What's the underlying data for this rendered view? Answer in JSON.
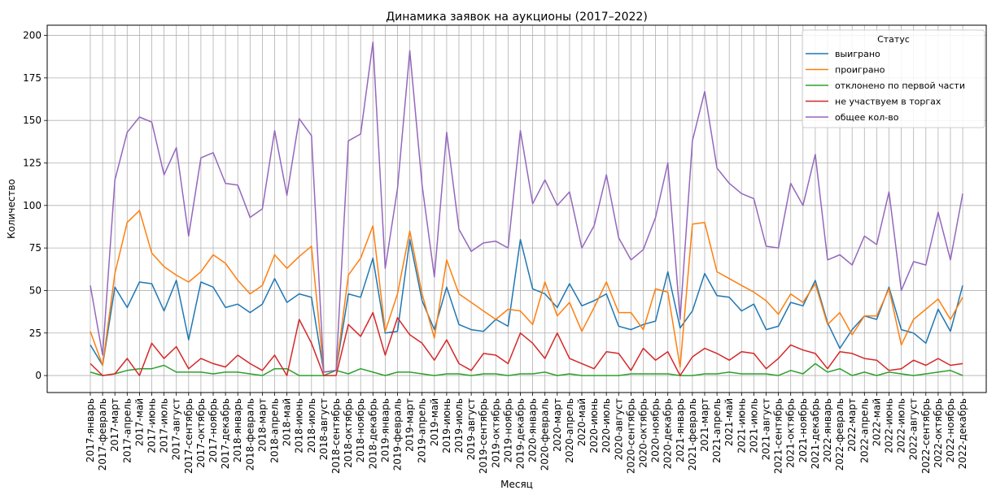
{
  "chart_data": {
    "type": "line",
    "title": "Динамика заявок на аукционы (2017–2022)",
    "xlabel": "Месяц",
    "ylabel": "Количество",
    "ylim": [
      -10,
      206
    ],
    "yticks": [
      0,
      25,
      50,
      75,
      100,
      125,
      150,
      175,
      200
    ],
    "grid": true,
    "legend": {
      "title": "Статус",
      "placement": "top-right"
    },
    "categories": [
      "2017-январь",
      "2017-февраль",
      "2017-март",
      "2017-апрель",
      "2017-май",
      "2017-июнь",
      "2017-июль",
      "2017-август",
      "2017-сентябрь",
      "2017-октябрь",
      "2017-ноябрь",
      "2017-декабрь",
      "2018-январь",
      "2018-февраль",
      "2018-март",
      "2018-апрель",
      "2018-май",
      "2018-июнь",
      "2018-июль",
      "2018-август",
      "2018-сентябрь",
      "2018-октябрь",
      "2018-ноябрь",
      "2018-декабрь",
      "2019-январь",
      "2019-февраль",
      "2019-март",
      "2019-апрель",
      "2019-май",
      "2019-июнь",
      "2019-июль",
      "2019-август",
      "2019-сентябрь",
      "2019-октябрь",
      "2019-ноябрь",
      "2019-декабрь",
      "2020-январь",
      "2020-февраль",
      "2020-март",
      "2020-апрель",
      "2020-май",
      "2020-июнь",
      "2020-июль",
      "2020-август",
      "2020-сентябрь",
      "2020-октябрь",
      "2020-ноябрь",
      "2020-декабрь",
      "2021-январь",
      "2021-февраль",
      "2021-март",
      "2021-апрель",
      "2021-май",
      "2021-июнь",
      "2021-июль",
      "2021-август",
      "2021-сентябрь",
      "2021-октябрь",
      "2021-ноябрь",
      "2021-декабрь",
      "2022-январь",
      "2022-февраль",
      "2022-март",
      "2022-апрель",
      "2022-май",
      "2022-июнь",
      "2022-июль",
      "2022-август",
      "2022-сентябрь",
      "2022-октябрь",
      "2022-ноябрь",
      "2022-декабрь"
    ],
    "series": [
      {
        "name": "выиграно",
        "color": "#1f77b4",
        "values": [
          18,
          6,
          52,
          40,
          55,
          54,
          38,
          56,
          21,
          55,
          52,
          40,
          42,
          37,
          42,
          57,
          43,
          48,
          46,
          2,
          3,
          48,
          46,
          69,
          25,
          26,
          80,
          44,
          27,
          52,
          30,
          27,
          26,
          33,
          29,
          80,
          51,
          48,
          40,
          54,
          41,
          44,
          48,
          29,
          27,
          30,
          32,
          61,
          28,
          38,
          60,
          47,
          46,
          38,
          42,
          27,
          29,
          43,
          41,
          56,
          31,
          16,
          27,
          35,
          33,
          52,
          27,
          25,
          19,
          39,
          26,
          53
        ]
      },
      {
        "name": "проиграно",
        "color": "#ff7f0e",
        "values": [
          26,
          6,
          60,
          90,
          97,
          72,
          64,
          59,
          55,
          61,
          71,
          66,
          56,
          48,
          53,
          71,
          63,
          70,
          76,
          2,
          3,
          59,
          69,
          88,
          26,
          48,
          85,
          48,
          22,
          68,
          48,
          43,
          38,
          33,
          39,
          38,
          30,
          55,
          35,
          43,
          26,
          40,
          55,
          37,
          37,
          27,
          51,
          49,
          5,
          89,
          90,
          61,
          57,
          53,
          49,
          44,
          36,
          48,
          43,
          54,
          30,
          37,
          24,
          35,
          35,
          51,
          18,
          33,
          39,
          45,
          33,
          46
        ]
      },
      {
        "name": "отклонено по первой части",
        "color": "#2ca02c",
        "values": [
          2,
          0,
          1,
          3,
          4,
          4,
          6,
          2,
          2,
          2,
          1,
          2,
          2,
          1,
          0,
          4,
          4,
          0,
          0,
          0,
          3,
          1,
          4,
          2,
          0,
          2,
          2,
          1,
          0,
          1,
          1,
          0,
          1,
          1,
          0,
          1,
          1,
          2,
          0,
          1,
          0,
          0,
          0,
          0,
          1,
          1,
          1,
          1,
          0,
          0,
          1,
          1,
          2,
          1,
          1,
          1,
          0,
          3,
          1,
          7,
          2,
          4,
          0,
          2,
          0,
          2,
          1,
          0,
          1,
          2,
          3,
          0
        ]
      },
      {
        "name": "не участвуем в торгах",
        "color": "#d62728",
        "values": [
          7,
          0,
          1,
          10,
          0,
          19,
          10,
          17,
          4,
          10,
          7,
          5,
          12,
          7,
          3,
          12,
          0,
          33,
          19,
          0,
          0,
          30,
          23,
          37,
          12,
          34,
          24,
          19,
          9,
          21,
          7,
          3,
          13,
          12,
          7,
          25,
          19,
          10,
          25,
          10,
          7,
          4,
          14,
          13,
          3,
          16,
          9,
          14,
          0,
          11,
          16,
          13,
          9,
          14,
          13,
          4,
          10,
          18,
          15,
          13,
          4,
          14,
          13,
          10,
          9,
          3,
          4,
          9,
          6,
          10,
          6,
          7
        ]
      },
      {
        "name": "общее кол-во",
        "color": "#9467bd",
        "values": [
          53,
          12,
          115,
          143,
          152,
          149,
          118,
          134,
          82,
          128,
          131,
          113,
          112,
          93,
          98,
          144,
          106,
          151,
          141,
          2,
          3,
          138,
          142,
          196,
          63,
          110,
          191,
          112,
          58,
          143,
          86,
          73,
          78,
          79,
          75,
          144,
          101,
          115,
          100,
          108,
          75,
          88,
          118,
          81,
          68,
          74,
          93,
          125,
          33,
          138,
          167,
          122,
          113,
          107,
          104,
          76,
          75,
          113,
          100,
          130,
          68,
          71,
          65,
          82,
          77,
          108,
          50,
          67,
          65,
          96,
          68,
          107
        ]
      }
    ]
  }
}
